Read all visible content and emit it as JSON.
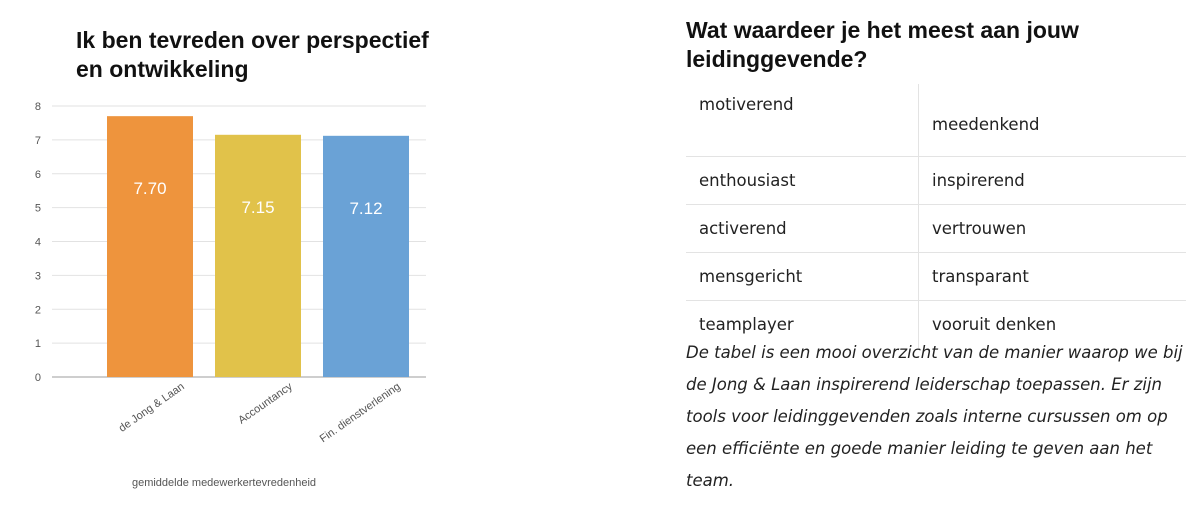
{
  "chart_data": {
    "type": "bar",
    "title": "Ik ben tevreden over perspectief en ontwikkeling",
    "categories": [
      "de Jong & Laan",
      "Accountancy",
      "Fin. dienstverlening"
    ],
    "values": [
      7.7,
      7.15,
      7.12
    ],
    "data_labels": [
      "7.70",
      "7.15",
      "7.12"
    ],
    "colors": [
      "#ee943d",
      "#e1c24a",
      "#6aa2d6"
    ],
    "xlabel": "gemiddelde medewerkertevredenheid",
    "ylabel": "",
    "ylim": [
      0,
      8
    ],
    "yticks": [
      "0",
      "1",
      "2",
      "3",
      "4",
      "5",
      "6",
      "7",
      "8"
    ],
    "grid": true,
    "legend": "none"
  },
  "right": {
    "title": "Wat waardeer je het meest aan jouw leidinggevende?",
    "rows": [
      [
        "motiverend",
        "meedenkend"
      ],
      [
        "enthousiast",
        "inspirerend"
      ],
      [
        "activerend",
        "vertrouwen"
      ],
      [
        "mensgericht",
        "transparant"
      ],
      [
        "teamplayer",
        "vooruit denken"
      ]
    ],
    "paragraph": "De tabel is een mooi overzicht van de manier waarop we bij de Jong & Laan inspirerend leiderschap toepassen. Er zijn tools voor leidinggevenden zoals interne cursussen om op een efficiënte en goede manier leiding te geven aan het team."
  }
}
